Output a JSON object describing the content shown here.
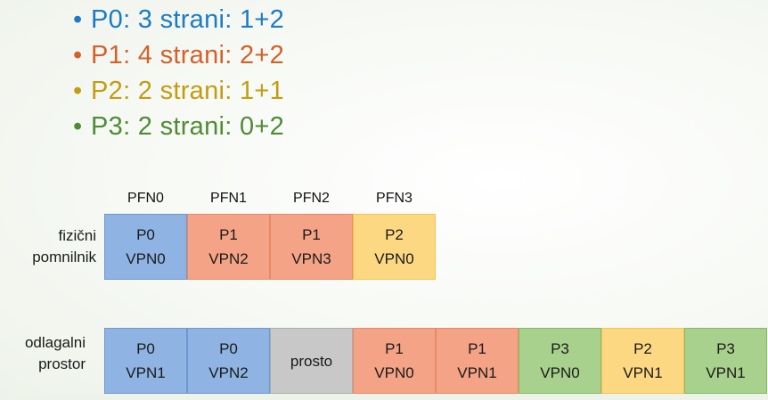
{
  "bullets": [
    {
      "text": "P0: 3 strani: 1+2",
      "color": "#1b7bc4"
    },
    {
      "text": "P1: 4 strani: 2+2",
      "color": "#d4602a"
    },
    {
      "text": "P2: 2 strani: 1+1",
      "color": "#c39c10"
    },
    {
      "text": "P3: 2 strani: 0+2",
      "color": "#4f8b34"
    }
  ],
  "bullet_glyph": "•",
  "physical": {
    "label_line1": "fizični",
    "label_line2": "pomnilnik",
    "pfn_labels": [
      "PFN0",
      "PFN1",
      "PFN2",
      "PFN3"
    ],
    "cells": [
      {
        "proc": "P0",
        "vpn": "VPN0"
      },
      {
        "proc": "P1",
        "vpn": "VPN2"
      },
      {
        "proc": "P1",
        "vpn": "VPN3"
      },
      {
        "proc": "P2",
        "vpn": "VPN0"
      }
    ]
  },
  "swap": {
    "label_line1": "odlagalni",
    "label_line2": "prostor",
    "cells": [
      {
        "proc": "P0",
        "vpn": "VPN1"
      },
      {
        "proc": "P0",
        "vpn": "VPN2"
      },
      {
        "free": "prosto"
      },
      {
        "proc": "P1",
        "vpn": "VPN0"
      },
      {
        "proc": "P1",
        "vpn": "VPN1"
      },
      {
        "proc": "P3",
        "vpn": "VPN0"
      },
      {
        "proc": "P2",
        "vpn": "VPN1"
      },
      {
        "proc": "P3",
        "vpn": "VPN1"
      }
    ]
  },
  "colors": {
    "P0": "#8fb4e3",
    "P1": "#f4a386",
    "P2": "#fdd883",
    "P3": "#a9d18e",
    "free": "#c8c8c8"
  }
}
